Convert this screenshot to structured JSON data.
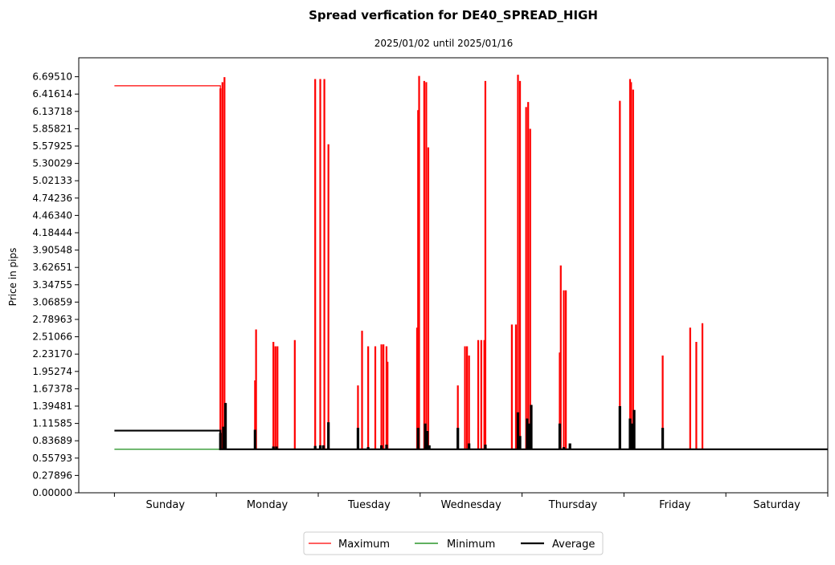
{
  "chart_data": {
    "type": "line",
    "title": "Spread verfication for DE40_SPREAD_HIGH",
    "subtitle": "2025/01/02 until 2025/01/16",
    "ylabel": "Price in pips",
    "xlabel": "",
    "ylim": [
      0.0,
      7.0
    ],
    "xlim": [
      -0.35,
      7.0
    ],
    "grid": false,
    "legend_position": "bottom-center",
    "y_ticks": [
      "0.00000",
      "0.27896",
      "0.55793",
      "0.83689",
      "1.11585",
      "1.39481",
      "1.67378",
      "1.95274",
      "2.23170",
      "2.51066",
      "2.78963",
      "3.06859",
      "3.34755",
      "3.62651",
      "3.90548",
      "4.18444",
      "4.46340",
      "4.74236",
      "5.02133",
      "5.30029",
      "5.57925",
      "5.85821",
      "6.13718",
      "6.41614",
      "6.69510"
    ],
    "x_ticks_days": [
      "Sunday",
      "Monday",
      "Tuesday",
      "Wednesday",
      "Thursday",
      "Friday",
      "Saturday"
    ],
    "x_tick_positions": [
      0,
      1,
      2,
      3,
      4,
      5,
      6,
      7
    ],
    "series": [
      {
        "name": "Maximum",
        "color": "#ff0000",
        "width": 1.2,
        "baseline": 0.7,
        "start": 0,
        "plateau": {
          "x_end": 1.04,
          "value": 6.55
        },
        "end": 7.0,
        "spikes": [
          [
            1.04,
            6.5
          ],
          [
            1.06,
            6.6
          ],
          [
            1.08,
            6.68
          ],
          [
            1.38,
            1.8
          ],
          [
            1.39,
            2.62
          ],
          [
            1.56,
            2.42
          ],
          [
            1.58,
            2.35
          ],
          [
            1.6,
            2.35
          ],
          [
            1.77,
            2.45
          ],
          [
            1.97,
            6.65
          ],
          [
            2.02,
            6.65
          ],
          [
            2.06,
            6.65
          ],
          [
            2.1,
            5.6
          ],
          [
            2.39,
            1.72
          ],
          [
            2.43,
            2.6
          ],
          [
            2.49,
            2.35
          ],
          [
            2.56,
            2.35
          ],
          [
            2.62,
            2.38
          ],
          [
            2.64,
            2.38
          ],
          [
            2.67,
            2.35
          ],
          [
            2.68,
            2.1
          ],
          [
            2.97,
            2.65
          ],
          [
            2.98,
            6.15
          ],
          [
            2.99,
            6.7
          ],
          [
            3.04,
            6.62
          ],
          [
            3.06,
            6.6
          ],
          [
            3.08,
            5.55
          ],
          [
            3.37,
            1.72
          ],
          [
            3.44,
            2.35
          ],
          [
            3.46,
            2.35
          ],
          [
            3.48,
            2.2
          ],
          [
            3.57,
            2.45
          ],
          [
            3.6,
            2.45
          ],
          [
            3.63,
            2.45
          ],
          [
            3.64,
            6.62
          ],
          [
            3.9,
            2.7
          ],
          [
            3.94,
            2.7
          ],
          [
            3.96,
            6.72
          ],
          [
            3.98,
            6.62
          ],
          [
            4.04,
            6.2
          ],
          [
            4.06,
            6.28
          ],
          [
            4.08,
            5.85
          ],
          [
            4.37,
            2.25
          ],
          [
            4.38,
            3.65
          ],
          [
            4.41,
            3.25
          ],
          [
            4.43,
            3.25
          ],
          [
            4.96,
            6.3
          ],
          [
            5.06,
            6.65
          ],
          [
            5.07,
            6.6
          ],
          [
            5.09,
            6.48
          ],
          [
            5.38,
            2.2
          ],
          [
            5.65,
            2.65
          ],
          [
            5.71,
            2.42
          ],
          [
            5.77,
            2.72
          ]
        ]
      },
      {
        "name": "Minimum",
        "color": "#008000",
        "width": 1.2,
        "baseline": 0.7,
        "start": 0,
        "end": 7.0,
        "plateau": {
          "x_end": 1.04,
          "value": 0.7
        },
        "spikes": []
      },
      {
        "name": "Average",
        "color": "#000000",
        "width": 2.2,
        "baseline": 0.7,
        "start": 0,
        "plateau": {
          "x_end": 1.04,
          "value": 1.0
        },
        "end": 7.0,
        "spikes": [
          [
            1.04,
            0.95
          ],
          [
            1.07,
            1.05
          ],
          [
            1.09,
            1.43
          ],
          [
            1.38,
            1.0
          ],
          [
            1.56,
            0.73
          ],
          [
            1.59,
            0.73
          ],
          [
            1.97,
            0.74
          ],
          [
            2.02,
            0.75
          ],
          [
            2.05,
            0.75
          ],
          [
            2.1,
            1.12
          ],
          [
            2.39,
            1.03
          ],
          [
            2.49,
            0.72
          ],
          [
            2.62,
            0.75
          ],
          [
            2.67,
            0.76
          ],
          [
            2.98,
            1.03
          ],
          [
            3.05,
            1.1
          ],
          [
            3.07,
            0.98
          ],
          [
            3.09,
            0.75
          ],
          [
            3.37,
            1.03
          ],
          [
            3.48,
            0.78
          ],
          [
            3.64,
            0.76
          ],
          [
            3.96,
            1.28
          ],
          [
            3.98,
            0.9
          ],
          [
            4.05,
            1.18
          ],
          [
            4.07,
            1.1
          ],
          [
            4.09,
            1.4
          ],
          [
            4.37,
            1.1
          ],
          [
            4.41,
            0.72
          ],
          [
            4.47,
            0.78
          ],
          [
            4.96,
            1.38
          ],
          [
            5.06,
            1.18
          ],
          [
            5.08,
            1.1
          ],
          [
            5.1,
            1.32
          ],
          [
            5.38,
            1.03
          ]
        ]
      }
    ]
  },
  "legend": {
    "items": [
      {
        "label": "Maximum",
        "color": "#ff0000"
      },
      {
        "label": "Minimum",
        "color": "#008000"
      },
      {
        "label": "Average",
        "color": "#000000"
      }
    ]
  }
}
